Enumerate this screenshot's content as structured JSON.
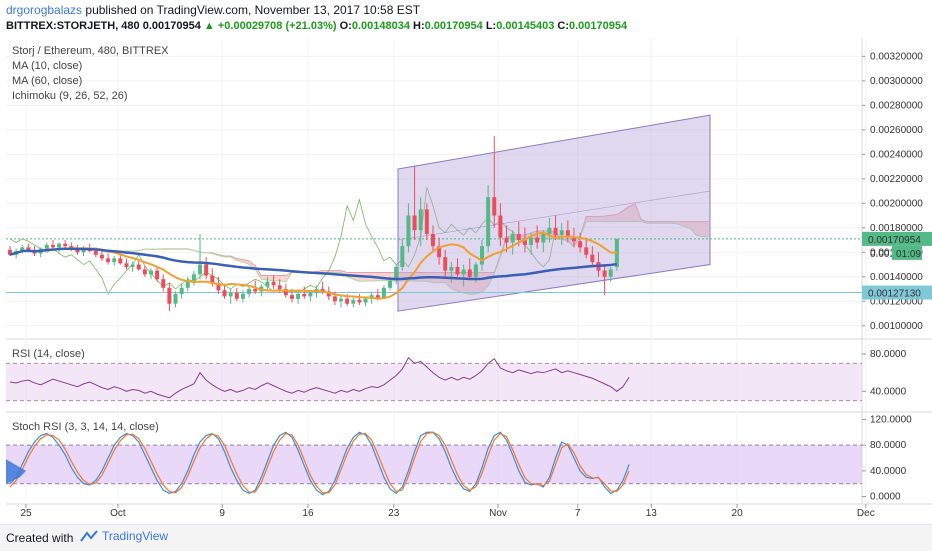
{
  "header": {
    "author": "drgorogbalazs",
    "published": "published on TradingView.com, November 13, 2017 10:58 EST",
    "symbol": "BITTREX:STORJETH, 480",
    "last": "0.00170954",
    "change": "▲ +0.00029708 (+21.03%)",
    "o_label": "O:",
    "o": "0.00148034",
    "h_label": "H:",
    "h": "0.00170954",
    "l_label": "L:",
    "l": "0.00145403",
    "c_label": "C:",
    "c": "0.00170954"
  },
  "legend": {
    "title": "Storj / Ethereum, 480, BITTREX",
    "ma10": "MA (10, close)",
    "ma60": "MA (60, close)",
    "ichimoku": "Ichimoku (9, 26, 52, 26)",
    "rsi": "RSI (14, close)",
    "stoch": "Stoch RSI (3, 3, 14, 14, close)"
  },
  "price_badges": {
    "last": "0.00170954",
    "countdown_prefix": "0.001",
    "countdown": "01:09",
    "level": "0.00127130"
  },
  "footer": {
    "created": "Created with",
    "brand": "TradingView"
  },
  "colors": {
    "up": "#53b987",
    "down": "#eb4d5c",
    "ma10": "#f0a030",
    "ma60": "#3a5fb5",
    "cloud_red": "#f9c9c9",
    "channel": "#b7a9d9",
    "rsi": "#8a3b8f"
  },
  "chart_data": [
    {
      "type": "candlestick",
      "title": "Storj / Ethereum, 480, BITTREX",
      "x_ticks": [
        "25",
        "Oct",
        "9",
        "16",
        "23",
        "Nov",
        "7",
        "13",
        "20",
        "Dec"
      ],
      "y_ticks": [
        "0.00320000",
        "0.00300000",
        "0.00280000",
        "0.00260000",
        "0.00240000",
        "0.00220000",
        "0.00200000",
        "0.00180000",
        "0.00160000",
        "0.00140000",
        "0.00120000",
        "0.00100000"
      ],
      "ylim": [
        0.0009,
        0.00335
      ],
      "ohlc": [
        [
          0.00162,
          0.00165,
          0.00157,
          0.00158
        ],
        [
          0.00158,
          0.00163,
          0.00155,
          0.00161
        ],
        [
          0.00161,
          0.00166,
          0.00159,
          0.00164
        ],
        [
          0.00164,
          0.00167,
          0.0016,
          0.00162
        ],
        [
          0.00162,
          0.00165,
          0.00157,
          0.00159
        ],
        [
          0.00159,
          0.00164,
          0.00156,
          0.00163
        ],
        [
          0.00163,
          0.00168,
          0.00161,
          0.00166
        ],
        [
          0.00166,
          0.0017,
          0.00162,
          0.00164
        ],
        [
          0.00164,
          0.00168,
          0.0016,
          0.00167
        ],
        [
          0.00167,
          0.0017,
          0.00163,
          0.00165
        ],
        [
          0.00165,
          0.00168,
          0.00161,
          0.00163
        ],
        [
          0.00163,
          0.00166,
          0.00158,
          0.0016
        ],
        [
          0.0016,
          0.00165,
          0.00157,
          0.00163
        ],
        [
          0.00163,
          0.00167,
          0.0016,
          0.00161
        ],
        [
          0.00161,
          0.00164,
          0.00156,
          0.00158
        ],
        [
          0.00158,
          0.00162,
          0.00153,
          0.00155
        ],
        [
          0.00155,
          0.00159,
          0.0015,
          0.00152
        ],
        [
          0.00152,
          0.00157,
          0.00149,
          0.00155
        ],
        [
          0.00155,
          0.00158,
          0.0015,
          0.00151
        ],
        [
          0.00151,
          0.00155,
          0.00146,
          0.00148
        ],
        [
          0.00148,
          0.00152,
          0.00144,
          0.0015
        ],
        [
          0.0015,
          0.00153,
          0.00145,
          0.00146
        ],
        [
          0.00146,
          0.00149,
          0.0014,
          0.00142
        ],
        [
          0.00142,
          0.00147,
          0.00138,
          0.00145
        ],
        [
          0.00145,
          0.00148,
          0.00136,
          0.00138
        ],
        [
          0.00138,
          0.00142,
          0.00128,
          0.00131
        ],
        [
          0.00131,
          0.00135,
          0.00112,
          0.00118
        ],
        [
          0.00118,
          0.00128,
          0.00115,
          0.00126
        ],
        [
          0.00126,
          0.00134,
          0.00122,
          0.00131
        ],
        [
          0.00131,
          0.0014,
          0.00128,
          0.00137
        ],
        [
          0.00137,
          0.00145,
          0.00133,
          0.00142
        ],
        [
          0.00142,
          0.00175,
          0.00138,
          0.0015
        ],
        [
          0.0015,
          0.00156,
          0.00138,
          0.00141
        ],
        [
          0.00141,
          0.00147,
          0.00132,
          0.00135
        ],
        [
          0.00135,
          0.0014,
          0.00126,
          0.00129
        ],
        [
          0.00129,
          0.00134,
          0.00122,
          0.00124
        ],
        [
          0.00124,
          0.0013,
          0.00118,
          0.00127
        ],
        [
          0.00127,
          0.00131,
          0.0012,
          0.00122
        ],
        [
          0.00122,
          0.00129,
          0.00119,
          0.00126
        ],
        [
          0.00126,
          0.00133,
          0.00123,
          0.0013
        ],
        [
          0.0013,
          0.00137,
          0.00126,
          0.00128
        ],
        [
          0.00128,
          0.00134,
          0.00124,
          0.00132
        ],
        [
          0.00132,
          0.0014,
          0.00128,
          0.00136
        ],
        [
          0.00136,
          0.00141,
          0.0013,
          0.00133
        ],
        [
          0.00133,
          0.00138,
          0.00127,
          0.0013
        ],
        [
          0.0013,
          0.00134,
          0.00123,
          0.00125
        ],
        [
          0.00125,
          0.0013,
          0.00119,
          0.00122
        ],
        [
          0.00122,
          0.00128,
          0.00118,
          0.00126
        ],
        [
          0.00126,
          0.00132,
          0.00122,
          0.00124
        ],
        [
          0.00124,
          0.00129,
          0.0012,
          0.00127
        ],
        [
          0.00127,
          0.00133,
          0.00123,
          0.0013
        ],
        [
          0.0013,
          0.00136,
          0.00126,
          0.00128
        ],
        [
          0.00128,
          0.00132,
          0.00121,
          0.00124
        ],
        [
          0.00124,
          0.00128,
          0.00117,
          0.0012
        ],
        [
          0.0012,
          0.00125,
          0.00115,
          0.00122
        ],
        [
          0.00122,
          0.00126,
          0.00116,
          0.00118
        ],
        [
          0.00118,
          0.00123,
          0.00115,
          0.00121
        ],
        [
          0.00121,
          0.00126,
          0.00117,
          0.00119
        ],
        [
          0.00119,
          0.00124,
          0.00116,
          0.00122
        ],
        [
          0.00122,
          0.00127,
          0.00118,
          0.00125
        ],
        [
          0.00125,
          0.0013,
          0.00121,
          0.00123
        ],
        [
          0.00123,
          0.00133,
          0.00122,
          0.00131
        ],
        [
          0.00131,
          0.0014,
          0.00129,
          0.00137
        ],
        [
          0.00137,
          0.0015,
          0.00134,
          0.00148
        ],
        [
          0.00148,
          0.0017,
          0.00145,
          0.00165
        ],
        [
          0.00165,
          0.002,
          0.0016,
          0.0019
        ],
        [
          0.0019,
          0.0023,
          0.0017,
          0.00178
        ],
        [
          0.00178,
          0.00205,
          0.00165,
          0.00195
        ],
        [
          0.00195,
          0.002,
          0.0017,
          0.00175
        ],
        [
          0.00175,
          0.00182,
          0.0016,
          0.00165
        ],
        [
          0.00165,
          0.00172,
          0.0015,
          0.00156
        ],
        [
          0.00156,
          0.00162,
          0.0014,
          0.00145
        ],
        [
          0.00145,
          0.00152,
          0.00135,
          0.00148
        ],
        [
          0.00148,
          0.00155,
          0.0014,
          0.00142
        ],
        [
          0.00142,
          0.0015,
          0.00132,
          0.00146
        ],
        [
          0.00146,
          0.00155,
          0.00138,
          0.0014
        ],
        [
          0.0014,
          0.00152,
          0.00135,
          0.0015
        ],
        [
          0.0015,
          0.0017,
          0.00145,
          0.00165
        ],
        [
          0.00165,
          0.00215,
          0.0016,
          0.00205
        ],
        [
          0.00205,
          0.00255,
          0.0018,
          0.0019
        ],
        [
          0.0019,
          0.002,
          0.00165,
          0.00172
        ],
        [
          0.00172,
          0.00182,
          0.0016,
          0.00168
        ],
        [
          0.00168,
          0.00178,
          0.00158,
          0.00175
        ],
        [
          0.00175,
          0.00185,
          0.00165,
          0.0017
        ],
        [
          0.0017,
          0.0018,
          0.0016,
          0.00166
        ],
        [
          0.00166,
          0.00176,
          0.00158,
          0.00172
        ],
        [
          0.00172,
          0.00182,
          0.00163,
          0.00168
        ],
        [
          0.00168,
          0.00178,
          0.0016,
          0.00175
        ],
        [
          0.00175,
          0.00188,
          0.00168,
          0.0018
        ],
        [
          0.0018,
          0.0019,
          0.0017,
          0.00174
        ],
        [
          0.00174,
          0.00184,
          0.00166,
          0.00178
        ],
        [
          0.00178,
          0.00186,
          0.00168,
          0.00172
        ],
        [
          0.00172,
          0.0018,
          0.00164,
          0.00169
        ],
        [
          0.00169,
          0.00176,
          0.0016,
          0.00164
        ],
        [
          0.00164,
          0.00172,
          0.00155,
          0.00158
        ],
        [
          0.00158,
          0.00165,
          0.00148,
          0.00152
        ],
        [
          0.00152,
          0.0016,
          0.0014,
          0.00145
        ],
        [
          0.00145,
          0.0015,
          0.00125,
          0.0014
        ],
        [
          0.0014,
          0.00148,
          0.00136,
          0.00146
        ],
        [
          0.00148,
          0.00171,
          0.00145,
          0.00171
        ]
      ],
      "series": [
        {
          "name": "MA (10, close)"
        },
        {
          "name": "MA (60, close)"
        },
        {
          "name": "Ichimoku (9, 26, 52, 26)"
        }
      ]
    },
    {
      "type": "line",
      "title": "RSI (14, close)",
      "y_ticks": [
        "80.0000",
        "40.0000"
      ],
      "ylim": [
        20,
        95
      ],
      "values": [
        50,
        49,
        51,
        52,
        49,
        47,
        50,
        53,
        51,
        49,
        47,
        45,
        48,
        50,
        47,
        44,
        42,
        45,
        43,
        40,
        42,
        41,
        38,
        40,
        37,
        35,
        33,
        38,
        42,
        45,
        48,
        60,
        52,
        47,
        43,
        40,
        42,
        39,
        41,
        44,
        42,
        46,
        49,
        46,
        43,
        40,
        38,
        41,
        39,
        42,
        44,
        42,
        40,
        38,
        41,
        39,
        42,
        40,
        43,
        45,
        44,
        47,
        52,
        57,
        64,
        76,
        70,
        72,
        66,
        60,
        55,
        52,
        55,
        52,
        55,
        53,
        57,
        62,
        70,
        75,
        65,
        62,
        60,
        63,
        61,
        59,
        61,
        60,
        62,
        64,
        60,
        62,
        60,
        58,
        56,
        54,
        51,
        48,
        45,
        40,
        45,
        55
      ]
    },
    {
      "type": "line",
      "title": "Stoch RSI (3, 3, 14, 14, close)",
      "y_ticks": [
        "120.0000",
        "80.0000",
        "40.0000",
        "0.0000"
      ],
      "ylim": [
        -10,
        130
      ],
      "series": [
        {
          "values": [
            20,
            30,
            50,
            70,
            85,
            95,
            98,
            92,
            80,
            65,
            45,
            30,
            20,
            18,
            25,
            40,
            60,
            80,
            92,
            98,
            95,
            85,
            65,
            45,
            25,
            10,
            5,
            8,
            20,
            40,
            65,
            85,
            95,
            98,
            90,
            70,
            45,
            25,
            10,
            5,
            10,
            30,
            55,
            80,
            95,
            100,
            92,
            72,
            48,
            25,
            10,
            3,
            8,
            25,
            50,
            75,
            92,
            100,
            96,
            80,
            55,
            30,
            12,
            5,
            15,
            40,
            70,
            95,
            100,
            100,
            90,
            70,
            45,
            25,
            12,
            8,
            20,
            45,
            75,
            95,
            100,
            88,
            65,
            40,
            22,
            18,
            20,
            15,
            30,
            60,
            85,
            80,
            60,
            40,
            30,
            28,
            30,
            15,
            5,
            10,
            25,
            50
          ]
        },
        {
          "values": [
            15,
            25,
            42,
            62,
            78,
            90,
            96,
            95,
            88,
            74,
            55,
            38,
            25,
            19,
            21,
            33,
            52,
            72,
            87,
            96,
            97,
            90,
            75,
            55,
            35,
            18,
            8,
            6,
            14,
            32,
            55,
            76,
            90,
            97,
            94,
            80,
            57,
            35,
            17,
            7,
            7,
            22,
            46,
            70,
            88,
            98,
            96,
            80,
            57,
            33,
            16,
            6,
            6,
            18,
            42,
            66,
            86,
            97,
            98,
            88,
            66,
            42,
            20,
            8,
            10,
            32,
            60,
            86,
            98,
            100,
            95,
            80,
            57,
            34,
            17,
            10,
            15,
            36,
            64,
            88,
            98,
            93,
            73,
            50,
            29,
            20,
            19,
            17,
            24,
            50,
            76,
            82,
            68,
            48,
            34,
            29,
            29,
            20,
            9,
            8,
            18,
            40
          ]
        }
      ]
    }
  ]
}
